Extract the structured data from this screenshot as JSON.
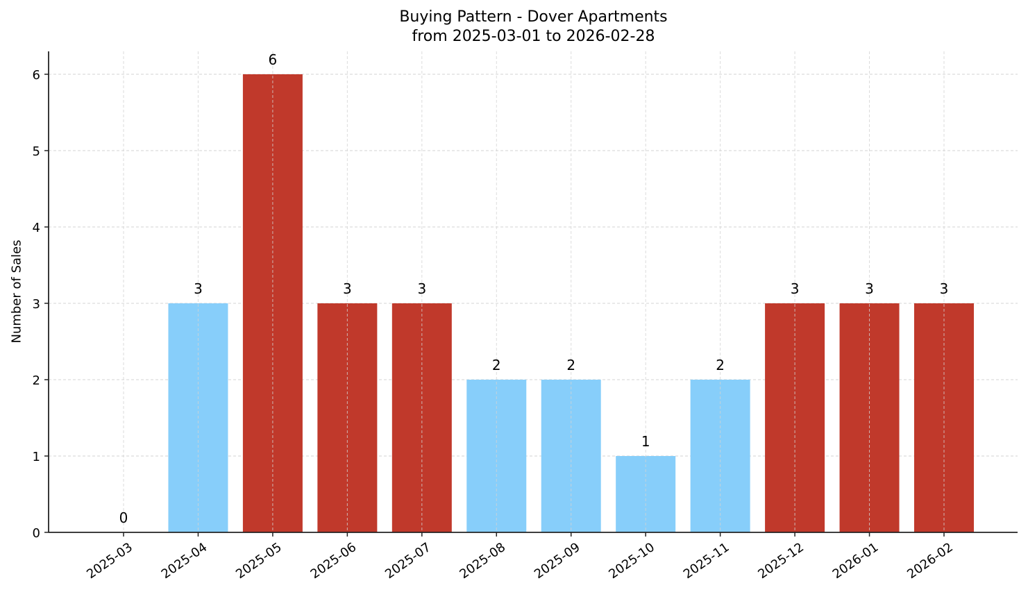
{
  "chart_data": {
    "type": "bar",
    "title": "Buying Pattern - Dover Apartments",
    "subtitle": "from 2025-03-01 to 2026-02-28",
    "xlabel": "",
    "ylabel": "Number of Sales",
    "ylim": [
      0,
      6.3
    ],
    "yticks": [
      0,
      1,
      2,
      3,
      4,
      5,
      6
    ],
    "grid": true,
    "legend": null,
    "categories": [
      "2025-03",
      "2025-04",
      "2025-05",
      "2025-06",
      "2025-07",
      "2025-08",
      "2025-09",
      "2025-10",
      "2025-11",
      "2025-12",
      "2026-01",
      "2026-02"
    ],
    "values": [
      0,
      3,
      6,
      3,
      3,
      2,
      2,
      1,
      2,
      3,
      3,
      3
    ],
    "bar_colors": [
      "#c0392b",
      "#87cefa",
      "#c0392b",
      "#c0392b",
      "#c0392b",
      "#87cefa",
      "#87cefa",
      "#87cefa",
      "#87cefa",
      "#c0392b",
      "#c0392b",
      "#c0392b"
    ],
    "colors": {
      "high": "#c0392b",
      "low": "#87cefa"
    }
  }
}
